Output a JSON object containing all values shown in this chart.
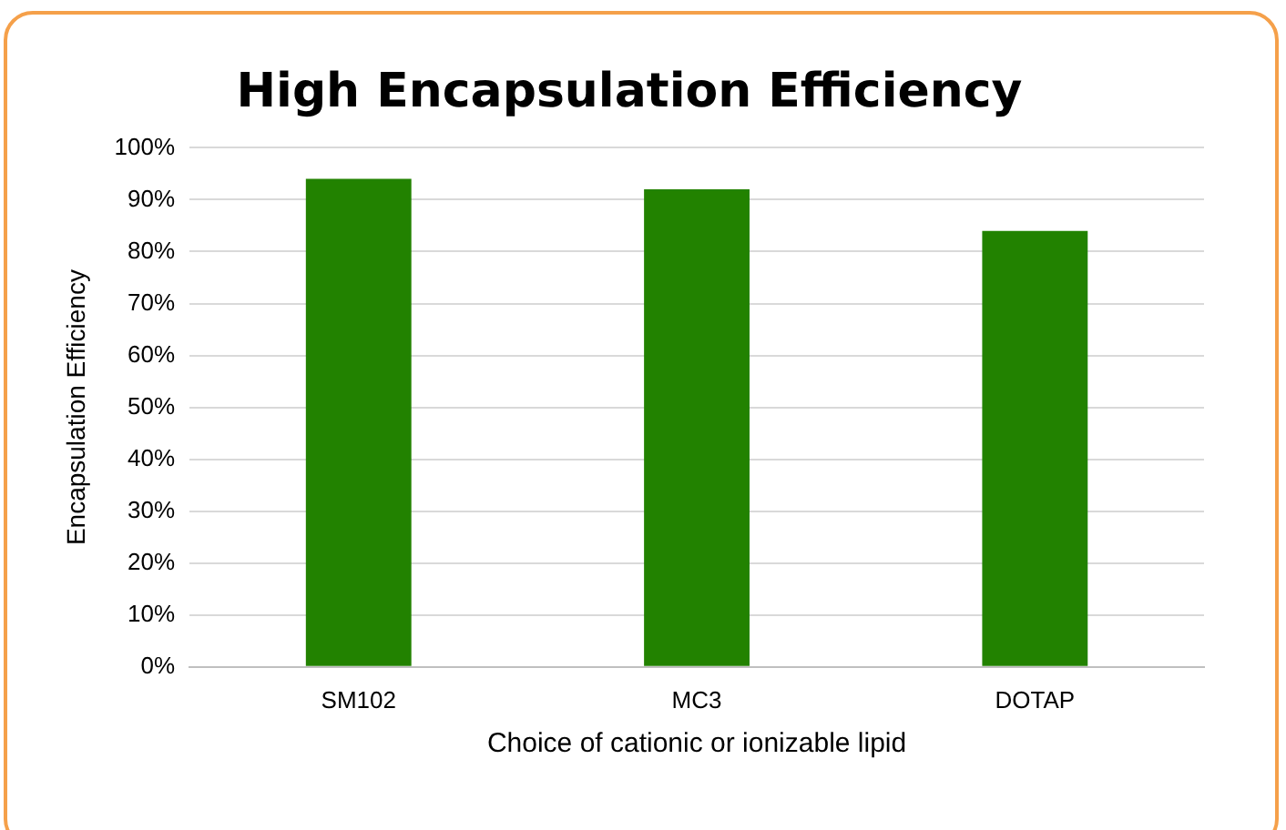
{
  "chart_data": {
    "type": "bar",
    "title": "High Encapsulation Efficiency",
    "xlabel": "Choice of cationic or ionizable lipid",
    "ylabel": "Encapsulation Efficiency",
    "categories": [
      "SM102",
      "MC3",
      "DOTAP"
    ],
    "values": [
      94,
      92,
      84
    ],
    "color": "#228200",
    "ylim": [
      0,
      100
    ],
    "yticks": [
      {
        "value": 0,
        "label": "0%"
      },
      {
        "value": 10,
        "label": "10%"
      },
      {
        "value": 20,
        "label": "20%"
      },
      {
        "value": 30,
        "label": "30%"
      },
      {
        "value": 40,
        "label": "40%"
      },
      {
        "value": 50,
        "label": "50%"
      },
      {
        "value": 60,
        "label": "60%"
      },
      {
        "value": 70,
        "label": "70%"
      },
      {
        "value": 80,
        "label": "80%"
      },
      {
        "value": 90,
        "label": "90%"
      },
      {
        "value": 100,
        "label": "100%"
      }
    ],
    "grid": "y",
    "legend": false
  }
}
